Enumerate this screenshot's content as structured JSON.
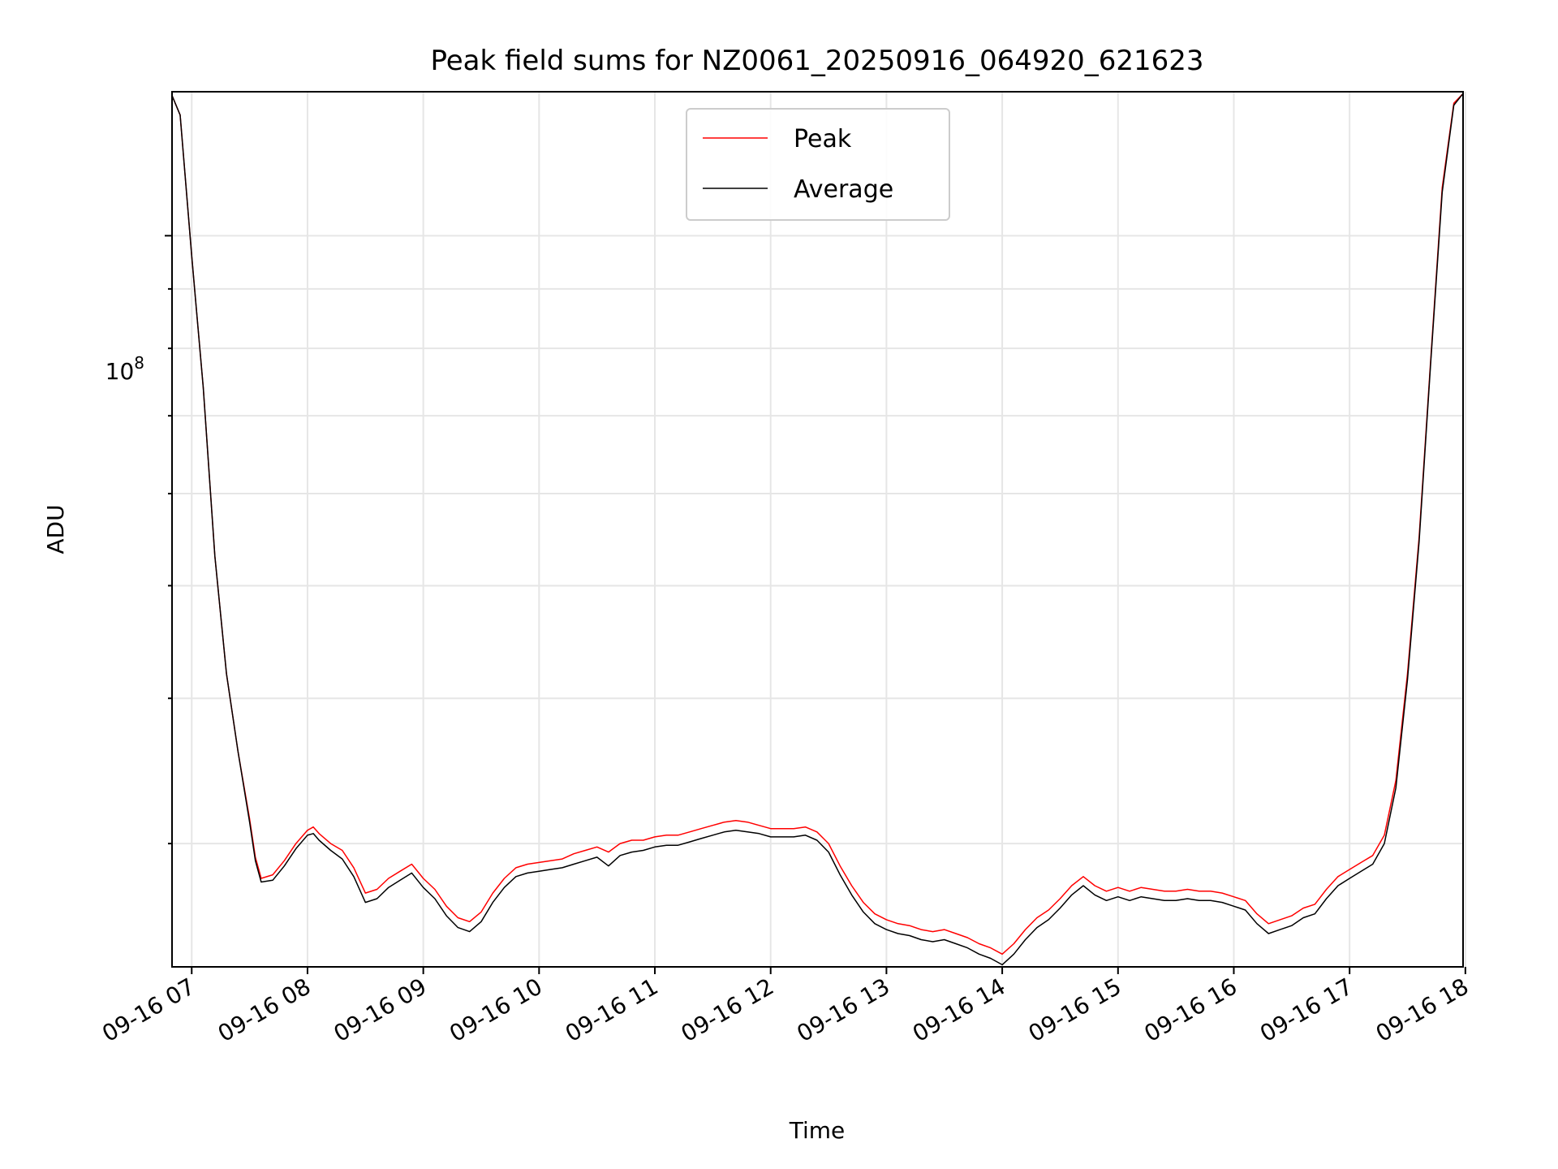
{
  "chart_data": {
    "type": "line",
    "title": "Peak field sums for NZ0061_20250916_064920_621623",
    "xlabel": "Time",
    "ylabel": "ADU",
    "x_tick_labels": [
      "09-16 07",
      "09-16 08",
      "09-16 09",
      "09-16 10",
      "09-16 11",
      "09-16 12",
      "09-16 13",
      "09-16 14",
      "09-16 15",
      "09-16 16",
      "09-16 17",
      "09-16 18"
    ],
    "x_tick_hours": [
      7,
      8,
      9,
      10,
      11,
      12,
      13,
      14,
      15,
      16,
      17,
      18
    ],
    "xlim_hours": [
      6.83,
      17.98
    ],
    "y_scale": "log",
    "ylim": [
      23500000,
      133000000
    ],
    "y_major_label": {
      "base": "10",
      "exp": "8",
      "value": 100000000
    },
    "y_minor_values": [
      30000000,
      40000000,
      50000000,
      60000000,
      70000000,
      80000000,
      90000000,
      200000000
    ],
    "grid": true,
    "legend": {
      "position": "top-center",
      "entries": [
        "Peak",
        "Average"
      ]
    },
    "colors": {
      "peak": "#ff0000",
      "average": "#000000"
    },
    "series": [
      {
        "name": "Peak",
        "x_hours": [
          6.83,
          6.9,
          7.0,
          7.1,
          7.2,
          7.3,
          7.4,
          7.5,
          7.55,
          7.6,
          7.7,
          7.8,
          7.9,
          8.0,
          8.05,
          8.1,
          8.2,
          8.3,
          8.4,
          8.5,
          8.6,
          8.7,
          8.8,
          8.9,
          9.0,
          9.1,
          9.2,
          9.3,
          9.4,
          9.5,
          9.6,
          9.7,
          9.8,
          9.9,
          10.0,
          10.1,
          10.2,
          10.3,
          10.4,
          10.5,
          10.6,
          10.7,
          10.8,
          10.9,
          11.0,
          11.1,
          11.2,
          11.3,
          11.4,
          11.5,
          11.6,
          11.7,
          11.8,
          11.9,
          12.0,
          12.1,
          12.2,
          12.3,
          12.4,
          12.5,
          12.6,
          12.7,
          12.8,
          12.9,
          13.0,
          13.1,
          13.2,
          13.3,
          13.4,
          13.5,
          13.6,
          13.7,
          13.8,
          13.9,
          14.0,
          14.1,
          14.2,
          14.3,
          14.4,
          14.5,
          14.6,
          14.7,
          14.8,
          14.9,
          15.0,
          15.1,
          15.2,
          15.3,
          15.4,
          15.5,
          15.6,
          15.7,
          15.8,
          15.9,
          16.0,
          16.1,
          16.2,
          16.3,
          16.4,
          16.5,
          16.6,
          16.7,
          16.8,
          16.9,
          17.0,
          17.1,
          17.2,
          17.3,
          17.4,
          17.5,
          17.6,
          17.7,
          17.8,
          17.9,
          17.98
        ],
        "values": [
          132000000,
          127000000,
          96000000,
          74000000,
          53000000,
          42000000,
          36000000,
          31500000,
          29200000,
          28000000,
          28200000,
          29000000,
          30000000,
          30800000,
          31000000,
          30600000,
          30000000,
          29600000,
          28600000,
          27200000,
          27400000,
          28000000,
          28400000,
          28800000,
          28000000,
          27400000,
          26500000,
          25900000,
          25700000,
          26200000,
          27200000,
          28000000,
          28600000,
          28800000,
          28900000,
          29000000,
          29100000,
          29400000,
          29600000,
          29800000,
          29500000,
          30000000,
          30200000,
          30200000,
          30400000,
          30500000,
          30500000,
          30700000,
          30900000,
          31100000,
          31300000,
          31400000,
          31300000,
          31100000,
          30900000,
          30900000,
          30900000,
          31000000,
          30700000,
          30000000,
          28700000,
          27600000,
          26700000,
          26100000,
          25800000,
          25600000,
          25500000,
          25300000,
          25200000,
          25300000,
          25100000,
          24900000,
          24600000,
          24400000,
          24100000,
          24600000,
          25300000,
          25900000,
          26300000,
          26900000,
          27600000,
          28100000,
          27600000,
          27300000,
          27500000,
          27300000,
          27500000,
          27400000,
          27300000,
          27300000,
          27400000,
          27300000,
          27300000,
          27200000,
          27000000,
          26800000,
          26100000,
          25600000,
          25800000,
          26000000,
          26400000,
          26600000,
          27400000,
          28100000,
          28500000,
          28900000,
          29300000,
          30500000,
          34000000,
          42000000,
          55000000,
          78000000,
          110000000,
          130000000,
          132500000
        ]
      },
      {
        "name": "Average",
        "x_hours": [
          6.83,
          6.9,
          7.0,
          7.1,
          7.2,
          7.3,
          7.4,
          7.5,
          7.55,
          7.6,
          7.7,
          7.8,
          7.9,
          8.0,
          8.05,
          8.1,
          8.2,
          8.3,
          8.4,
          8.5,
          8.6,
          8.7,
          8.8,
          8.9,
          9.0,
          9.1,
          9.2,
          9.3,
          9.4,
          9.5,
          9.6,
          9.7,
          9.8,
          9.9,
          10.0,
          10.1,
          10.2,
          10.3,
          10.4,
          10.5,
          10.6,
          10.7,
          10.8,
          10.9,
          11.0,
          11.1,
          11.2,
          11.3,
          11.4,
          11.5,
          11.6,
          11.7,
          11.8,
          11.9,
          12.0,
          12.1,
          12.2,
          12.3,
          12.4,
          12.5,
          12.6,
          12.7,
          12.8,
          12.9,
          13.0,
          13.1,
          13.2,
          13.3,
          13.4,
          13.5,
          13.6,
          13.7,
          13.8,
          13.9,
          14.0,
          14.1,
          14.2,
          14.3,
          14.4,
          14.5,
          14.6,
          14.7,
          14.8,
          14.9,
          15.0,
          15.1,
          15.2,
          15.3,
          15.4,
          15.5,
          15.6,
          15.7,
          15.8,
          15.9,
          16.0,
          16.1,
          16.2,
          16.3,
          16.4,
          16.5,
          16.6,
          16.7,
          16.8,
          16.9,
          17.0,
          17.1,
          17.2,
          17.3,
          17.4,
          17.5,
          17.6,
          17.7,
          17.8,
          17.9,
          17.98
        ],
        "values": [
          132000000,
          127000000,
          96000000,
          74000000,
          53000000,
          42000000,
          36000000,
          31300000,
          29000000,
          27800000,
          27900000,
          28700000,
          29700000,
          30500000,
          30600000,
          30200000,
          29600000,
          29100000,
          28100000,
          26700000,
          26900000,
          27500000,
          27900000,
          28300000,
          27500000,
          26900000,
          26000000,
          25400000,
          25200000,
          25700000,
          26700000,
          27500000,
          28100000,
          28300000,
          28400000,
          28500000,
          28600000,
          28800000,
          29000000,
          29200000,
          28700000,
          29300000,
          29500000,
          29600000,
          29800000,
          29900000,
          29900000,
          30100000,
          30300000,
          30500000,
          30700000,
          30800000,
          30700000,
          30600000,
          30400000,
          30400000,
          30400000,
          30500000,
          30200000,
          29500000,
          28200000,
          27100000,
          26200000,
          25600000,
          25300000,
          25100000,
          25000000,
          24800000,
          24700000,
          24800000,
          24600000,
          24400000,
          24100000,
          23900000,
          23600000,
          24100000,
          24800000,
          25400000,
          25800000,
          26400000,
          27100000,
          27600000,
          27100000,
          26800000,
          27000000,
          26800000,
          27000000,
          26900000,
          26800000,
          26800000,
          26900000,
          26800000,
          26800000,
          26700000,
          26500000,
          26300000,
          25600000,
          25100000,
          25300000,
          25500000,
          25900000,
          26100000,
          26900000,
          27600000,
          28000000,
          28400000,
          28800000,
          30000000,
          33500000,
          41500000,
          54500000,
          77500000,
          109000000,
          129500000,
          132500000
        ]
      }
    ]
  }
}
